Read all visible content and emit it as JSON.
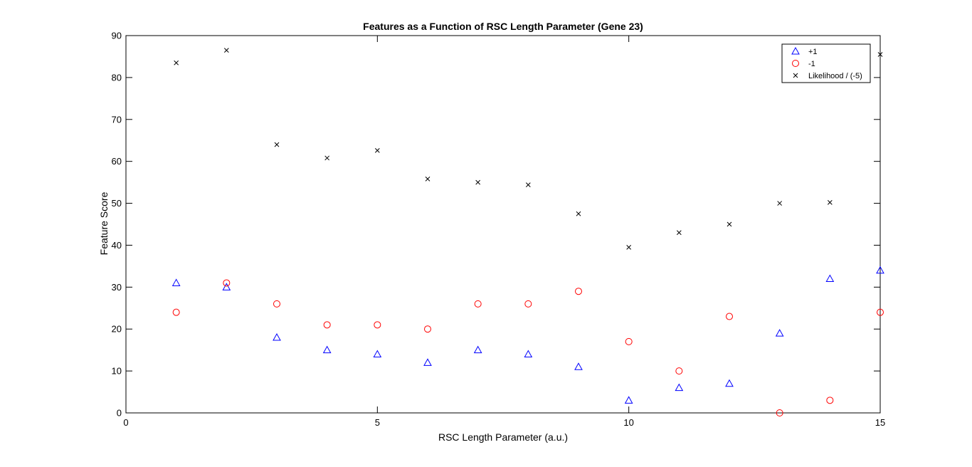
{
  "chart_data": {
    "type": "scatter",
    "title": "Features as a Function of RSC Length Parameter (Gene 23)",
    "xlabel": "RSC Length Parameter (a.u.)",
    "ylabel": "Feature Score",
    "xlim": [
      0,
      15
    ],
    "ylim": [
      0,
      90
    ],
    "xticks": [
      0,
      5,
      10,
      15
    ],
    "yticks": [
      0,
      10,
      20,
      30,
      40,
      50,
      60,
      70,
      80,
      90
    ],
    "grid": false,
    "legend_position": "top-right",
    "series": [
      {
        "name": "+1",
        "marker": "triangle",
        "color": "#0000ff",
        "x": [
          1,
          2,
          3,
          4,
          5,
          6,
          7,
          8,
          9,
          10,
          11,
          12,
          13,
          14,
          15
        ],
        "y": [
          31,
          30,
          18,
          15,
          14,
          12,
          15,
          14,
          11,
          3,
          6,
          7,
          19,
          32,
          34
        ]
      },
      {
        "name": "-1",
        "marker": "circle",
        "color": "#ff0000",
        "x": [
          1,
          2,
          3,
          4,
          5,
          6,
          7,
          8,
          9,
          10,
          11,
          12,
          13,
          14,
          15
        ],
        "y": [
          24,
          31,
          26,
          21,
          21,
          20,
          26,
          26,
          29,
          17,
          10,
          23,
          0,
          3,
          24
        ]
      },
      {
        "name": "Likelihood / (-5)",
        "marker": "x",
        "color": "#000000",
        "x": [
          1,
          2,
          3,
          4,
          5,
          6,
          7,
          8,
          9,
          10,
          11,
          12,
          13,
          14,
          15
        ],
        "y": [
          83.5,
          86.5,
          64,
          60.8,
          62.6,
          55.8,
          55,
          54.4,
          47.5,
          39.5,
          43,
          45,
          50,
          50.2,
          85.5
        ]
      }
    ]
  }
}
